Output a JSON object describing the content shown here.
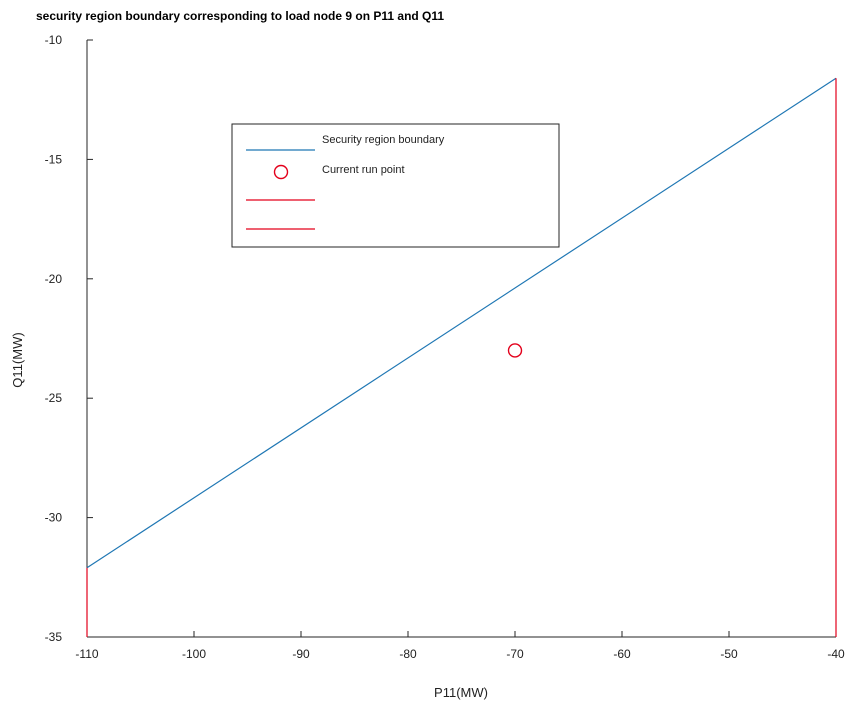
{
  "chart_data": {
    "type": "line",
    "title": "security region boundary corresponding to load node 9 on P11 and Q11",
    "xlabel": "P11(MW)",
    "ylabel": "Q11(MW)",
    "xlim": [
      -110,
      -40
    ],
    "ylim": [
      -35,
      -10
    ],
    "x_ticks": [
      -110,
      -100,
      -90,
      -80,
      -70,
      -60,
      -50,
      -40
    ],
    "y_ticks": [
      -10,
      -15,
      -20,
      -25,
      -30,
      -35
    ],
    "grid": false,
    "legend_placement": "upper-center",
    "series": [
      {
        "name": "Security region boundary",
        "kind": "line",
        "color": "#1f77b4",
        "x": [
          -110,
          -40
        ],
        "y": [
          -32.1,
          -11.6
        ]
      },
      {
        "name": "Current run point",
        "kind": "marker-circle",
        "color": "#e3001b",
        "x": [
          -70
        ],
        "y": [
          -23.0
        ]
      },
      {
        "name": "",
        "kind": "line",
        "color": "#e3001b",
        "x": [
          -110,
          -110
        ],
        "y": [
          -35,
          -32.1
        ]
      },
      {
        "name": "",
        "kind": "line",
        "color": "#e3001b",
        "x": [
          -40,
          -40
        ],
        "y": [
          -35,
          -11.6
        ]
      }
    ]
  }
}
